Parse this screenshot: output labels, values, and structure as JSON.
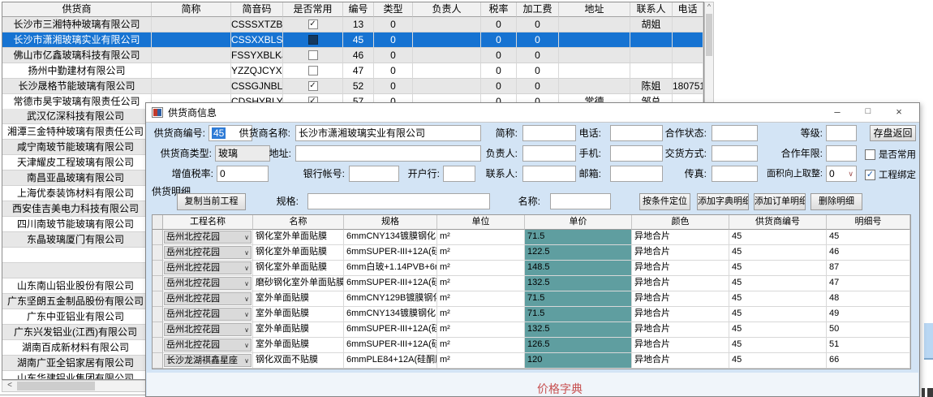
{
  "glyphs": {
    "scroll_up": "^",
    "scroll_left": "<",
    "combo_arrow": "∨",
    "checkbox_check": "✓"
  },
  "colors": {
    "selection_blue": "#1673D2",
    "dialog_bg": "#D3E4F5",
    "unit_price_cell_bg": "#5F9EA0",
    "footer_red": "#C75050",
    "row_alt_gray": "#E7E7E7"
  },
  "suppliers_table": {
    "headers": [
      "供货商",
      "简称",
      "简音码",
      "是否常用",
      "编号",
      "类型",
      "负责人",
      "税率",
      "加工费",
      "地址",
      "联系人",
      "电话"
    ],
    "rows": [
      {
        "supplier": "长沙市三湘特种玻璃有限公司",
        "short_name": "",
        "code": "CSSSXTZBL...",
        "common": true,
        "id": "13",
        "type": "0",
        "manager": "",
        "tax_rate": "0",
        "processing_fee": "0",
        "address": "",
        "contact": "胡姐",
        "phone": "",
        "selected": false
      },
      {
        "supplier": "长沙市潇湘玻璃实业有限公司",
        "short_name": "",
        "code": "CSSXXBLSY...",
        "common": false,
        "id": "45",
        "type": "0",
        "manager": "",
        "tax_rate": "0",
        "processing_fee": "0",
        "address": "",
        "contact": "",
        "phone": "",
        "selected": true
      },
      {
        "supplier": "佛山市亿鑫玻璃科技有限公司",
        "short_name": "",
        "code": "FSSYXBLKJ...",
        "common": false,
        "id": "46",
        "type": "0",
        "manager": "",
        "tax_rate": "0",
        "processing_fee": "0",
        "address": "",
        "contact": "",
        "phone": "",
        "selected": false
      },
      {
        "supplier": "扬州中勤建材有限公司",
        "short_name": "",
        "code": "YZZQJCYXGS",
        "common": false,
        "id": "47",
        "type": "0",
        "manager": "",
        "tax_rate": "0",
        "processing_fee": "0",
        "address": "",
        "contact": "",
        "phone": "",
        "selected": false
      },
      {
        "supplier": "长沙晟格节能玻璃有限公司",
        "short_name": "",
        "code": "CSSGJNBLYXGS",
        "common": true,
        "id": "52",
        "type": "0",
        "manager": "",
        "tax_rate": "0",
        "processing_fee": "0",
        "address": "",
        "contact": "陈姐",
        "phone": "180751",
        "selected": false
      },
      {
        "supplier": "常德市昊宇玻璃有限责任公司",
        "short_name": "",
        "code": "CDSHYBLYX",
        "common": true,
        "id": "57",
        "type": "0",
        "manager": "",
        "tax_rate": "0",
        "processing_fee": "0",
        "address": "常德",
        "contact": "邹总",
        "phone": "",
        "selected": false
      }
    ]
  },
  "supplier_list": {
    "items": [
      "武汉亿深科技有限公司",
      "湘潭三金特种玻璃有限责任公司",
      "咸宁南玻节能玻璃有限公司",
      "天津耀皮工程玻璃有限公司",
      "南昌亚晶玻璃有限公司",
      "上海优泰装饰材料有限公司",
      "西安佳吉美电力科技有限公司",
      "四川南玻节能玻璃有限公司",
      "东晶玻璃厦门有限公司",
      "",
      "",
      "山东南山铝业股份有限公司",
      "广东坚朗五金制品股份有限公司",
      "广东中亚铝业有限公司",
      "广东兴发铝业(江西)有限公司",
      "湖南百成新材料有限公司",
      "湖南广亚全铝家居有限公司",
      "山东华建铝业集团有限公司"
    ]
  },
  "dialog": {
    "title": "供货商信息",
    "window_buttons": {
      "minimize": "–",
      "maximize": "□",
      "close": "×"
    },
    "fields": {
      "supplier_id": {
        "label": "供货商编号:",
        "value": "45"
      },
      "supplier_name": {
        "label": "供货商名称:",
        "value": "长沙市潇湘玻璃实业有限公司"
      },
      "short_name": {
        "label": "简称:",
        "value": ""
      },
      "phone": {
        "label": "电话:",
        "value": ""
      },
      "coop_status": {
        "label": "合作状态:",
        "value": ""
      },
      "grade": {
        "label": "等级:",
        "value": ""
      },
      "supplier_type": {
        "label": "供货商类型:",
        "value": "玻璃"
      },
      "address": {
        "label": "地址:",
        "value": ""
      },
      "manager": {
        "label": "负责人:",
        "value": ""
      },
      "mobile": {
        "label": "手机:",
        "value": ""
      },
      "delivery_method": {
        "label": "交货方式:",
        "value": ""
      },
      "coop_years": {
        "label": "合作年限:",
        "value": ""
      },
      "vat_rate": {
        "label": "增值税率:",
        "value": "0"
      },
      "bank_account": {
        "label": "银行帐号:",
        "value": ""
      },
      "bank_branch": {
        "label": "开户行:",
        "value": ""
      },
      "contact": {
        "label": "联系人:",
        "value": ""
      },
      "email": {
        "label": "邮箱:",
        "value": ""
      },
      "fax": {
        "label": "传真:",
        "value": ""
      },
      "area_round_up": {
        "label": "面积向上取整:",
        "value": "0"
      }
    },
    "checkboxes": {
      "is_common": {
        "label": "是否常用",
        "checked": false
      },
      "project_bind": {
        "label": "工程绑定",
        "checked": true
      }
    },
    "buttons": {
      "save_return": "存盘返回",
      "copy_current_project": "复制当前工程",
      "locate_by_condition": "按条件定位",
      "add_dict_detail": "添加字典明细",
      "add_order_detail": "添加订单明细",
      "delete_detail": "删除明细"
    },
    "detail_section": {
      "title": "供货明细",
      "spec_label": "规格:",
      "name_label": "名称:",
      "spec_value": "",
      "name_value": ""
    },
    "detail_grid": {
      "headers": [
        "工程名称",
        "名称",
        "规格",
        "单位",
        "单价",
        "颜色",
        "供货商编号",
        "明细号"
      ],
      "rows": [
        [
          "岳州北控花园",
          "钢化室外单面贴膜",
          "6mmCNY134镀膜钢化",
          "m²",
          "71.5",
          "异地合片",
          "45",
          "45"
        ],
        [
          "岳州北控花园",
          "钢化室外单面贴膜",
          "6mmSUPER-III+12A(硅...",
          "m²",
          "122.5",
          "异地合片",
          "45",
          "46"
        ],
        [
          "岳州北控花园",
          "钢化室外单面贴膜",
          "6mm白玻+1.14PVB+6mm...",
          "m²",
          "148.5",
          "异地合片",
          "45",
          "87"
        ],
        [
          "岳州北控花园",
          "磨砂钢化室外单面贴膜",
          "6mmSUPER-III+12A(硅...",
          "m²",
          "132.5",
          "异地合片",
          "45",
          "47"
        ],
        [
          "岳州北控花园",
          "室外单面贴膜",
          "6mmCNY129B镀膜钢化",
          "m²",
          "71.5",
          "异地合片",
          "45",
          "48"
        ],
        [
          "岳州北控花园",
          "室外单面贴膜",
          "6mmCNY134镀膜钢化",
          "m²",
          "71.5",
          "异地合片",
          "45",
          "49"
        ],
        [
          "岳州北控花园",
          "室外单面贴膜",
          "6mmSUPER-III+12A(硅...",
          "m²",
          "132.5",
          "异地合片",
          "45",
          "50"
        ],
        [
          "岳州北控花园",
          "室外单面贴膜",
          "6mmSUPER-III+12A(硅...",
          "m²",
          "126.5",
          "异地合片",
          "45",
          "51"
        ],
        [
          "长沙龙湖祺鑫星座",
          "钢化双面不贴膜",
          "6mmPLE84+12A(硅酮胶...",
          "m²",
          "120",
          "异地合片",
          "45",
          "66"
        ]
      ]
    },
    "footer_label": "价格字典"
  }
}
